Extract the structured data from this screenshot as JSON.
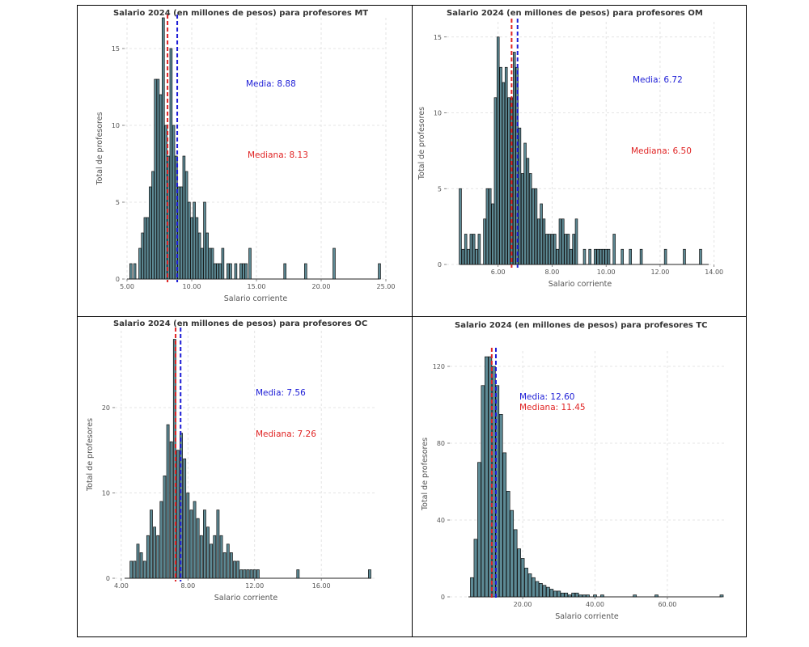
{
  "colors": {
    "bar_fill": "#5d8a95",
    "bar_stroke": "#111111",
    "mean": "#1c1cd6",
    "median": "#e02424",
    "grid": "#dcdcdc"
  },
  "chart_data": [
    {
      "type": "bar",
      "title": "Salario 2024 (en millones de pesos) para profesores MT",
      "xlabel": "Salario corriente",
      "ylabel": "Total de profesores",
      "xlim": [
        5.0,
        24.5
      ],
      "ylim": [
        0,
        17
      ],
      "xticks": [
        5.0,
        10.0,
        15.0,
        20.0,
        25.0
      ],
      "xtick_labels": [
        "5.00",
        "10.00",
        "15.00",
        "20.00",
        "25.00"
      ],
      "yticks": [
        0,
        5,
        10,
        15
      ],
      "bin_width": 0.18,
      "bins": [
        [
          5.3,
          1
        ],
        [
          5.6,
          1
        ],
        [
          6.0,
          2
        ],
        [
          6.2,
          3
        ],
        [
          6.4,
          4
        ],
        [
          6.6,
          4
        ],
        [
          6.8,
          6
        ],
        [
          7.0,
          7
        ],
        [
          7.2,
          13
        ],
        [
          7.4,
          13
        ],
        [
          7.6,
          12
        ],
        [
          7.8,
          17
        ],
        [
          8.0,
          10
        ],
        [
          8.2,
          8
        ],
        [
          8.4,
          15
        ],
        [
          8.6,
          10
        ],
        [
          8.8,
          8
        ],
        [
          9.0,
          6
        ],
        [
          9.2,
          6
        ],
        [
          9.4,
          8
        ],
        [
          9.6,
          7
        ],
        [
          9.8,
          5
        ],
        [
          10.0,
          4
        ],
        [
          10.2,
          5
        ],
        [
          10.4,
          4
        ],
        [
          10.6,
          3
        ],
        [
          10.8,
          2
        ],
        [
          11.0,
          5
        ],
        [
          11.2,
          3
        ],
        [
          11.4,
          2
        ],
        [
          11.6,
          2
        ],
        [
          11.8,
          1
        ],
        [
          12.0,
          1
        ],
        [
          12.2,
          1
        ],
        [
          12.4,
          2
        ],
        [
          12.8,
          1
        ],
        [
          13.0,
          1
        ],
        [
          13.4,
          1
        ],
        [
          13.8,
          1
        ],
        [
          14.0,
          1
        ],
        [
          14.2,
          1
        ],
        [
          14.5,
          2
        ],
        [
          17.2,
          1
        ],
        [
          18.8,
          1
        ],
        [
          21.0,
          2
        ],
        [
          24.5,
          1
        ]
      ],
      "mean": {
        "value": 8.88,
        "label": "Media: 8.88"
      },
      "median": {
        "value": 8.13,
        "label": "Mediana: 8.13"
      }
    },
    {
      "type": "bar",
      "title": "Salario 2024 (en millones de pesos) para profesores OM",
      "xlabel": "Salario corriente",
      "ylabel": "Total de profesores",
      "xlim": [
        4.6,
        13.8
      ],
      "ylim": [
        0,
        16
      ],
      "xticks": [
        6.0,
        8.0,
        10.0,
        12.0,
        14.0
      ],
      "xtick_labels": [
        "6.00",
        "8.00",
        "10.00",
        "12.00",
        "14.00"
      ],
      "yticks": [
        0,
        5,
        10,
        15
      ],
      "bin_width": 0.085,
      "bins": [
        [
          4.6,
          5
        ],
        [
          4.7,
          1
        ],
        [
          4.8,
          2
        ],
        [
          4.9,
          1
        ],
        [
          5.0,
          2
        ],
        [
          5.1,
          2
        ],
        [
          5.2,
          1
        ],
        [
          5.3,
          2
        ],
        [
          5.5,
          3
        ],
        [
          5.6,
          5
        ],
        [
          5.7,
          5
        ],
        [
          5.8,
          4
        ],
        [
          5.9,
          11
        ],
        [
          6.0,
          15
        ],
        [
          6.1,
          13
        ],
        [
          6.2,
          12
        ],
        [
          6.3,
          13
        ],
        [
          6.4,
          11
        ],
        [
          6.5,
          11
        ],
        [
          6.6,
          14
        ],
        [
          6.7,
          13
        ],
        [
          6.8,
          9
        ],
        [
          6.9,
          6
        ],
        [
          7.0,
          8
        ],
        [
          7.1,
          7
        ],
        [
          7.2,
          6
        ],
        [
          7.3,
          5
        ],
        [
          7.4,
          5
        ],
        [
          7.5,
          3
        ],
        [
          7.6,
          4
        ],
        [
          7.7,
          3
        ],
        [
          7.8,
          2
        ],
        [
          7.9,
          2
        ],
        [
          8.0,
          2
        ],
        [
          8.1,
          2
        ],
        [
          8.2,
          1
        ],
        [
          8.3,
          3
        ],
        [
          8.4,
          3
        ],
        [
          8.5,
          2
        ],
        [
          8.6,
          2
        ],
        [
          8.7,
          1
        ],
        [
          8.8,
          2
        ],
        [
          8.9,
          3
        ],
        [
          9.2,
          1
        ],
        [
          9.4,
          1
        ],
        [
          9.6,
          1
        ],
        [
          9.7,
          1
        ],
        [
          9.8,
          1
        ],
        [
          9.9,
          1
        ],
        [
          10.0,
          1
        ],
        [
          10.1,
          1
        ],
        [
          10.3,
          2
        ],
        [
          10.6,
          1
        ],
        [
          10.9,
          1
        ],
        [
          11.3,
          1
        ],
        [
          12.2,
          1
        ],
        [
          12.9,
          1
        ],
        [
          13.5,
          1
        ]
      ],
      "mean": {
        "value": 6.72,
        "label": "Media: 6.72"
      },
      "median": {
        "value": 6.5,
        "label": "Mediana: 6.50"
      }
    },
    {
      "type": "bar",
      "title": "Salario 2024 (en millones de pesos) para profesores OC",
      "xlabel": "Salario corriente",
      "ylabel": "Total de profesores",
      "xlim": [
        4.2,
        19.0
      ],
      "ylim": [
        0,
        29
      ],
      "xticks": [
        4.0,
        8.0,
        12.0,
        16.0
      ],
      "xtick_labels": [
        "4.00",
        "8.00",
        "12.00",
        "16.00"
      ],
      "yticks": [
        0,
        10,
        20
      ],
      "bin_width": 0.15,
      "bins": [
        [
          4.6,
          2
        ],
        [
          4.8,
          2
        ],
        [
          5.0,
          4
        ],
        [
          5.2,
          3
        ],
        [
          5.4,
          2
        ],
        [
          5.6,
          5
        ],
        [
          5.8,
          8
        ],
        [
          6.0,
          6
        ],
        [
          6.2,
          5
        ],
        [
          6.4,
          9
        ],
        [
          6.6,
          12
        ],
        [
          6.8,
          18
        ],
        [
          7.0,
          16
        ],
        [
          7.2,
          28
        ],
        [
          7.4,
          15
        ],
        [
          7.6,
          17
        ],
        [
          7.8,
          14
        ],
        [
          8.0,
          10
        ],
        [
          8.2,
          8
        ],
        [
          8.4,
          9
        ],
        [
          8.6,
          7
        ],
        [
          8.8,
          5
        ],
        [
          9.0,
          8
        ],
        [
          9.2,
          6
        ],
        [
          9.4,
          4
        ],
        [
          9.6,
          5
        ],
        [
          9.8,
          8
        ],
        [
          10.0,
          5
        ],
        [
          10.2,
          3
        ],
        [
          10.4,
          4
        ],
        [
          10.6,
          3
        ],
        [
          10.8,
          2
        ],
        [
          11.0,
          2
        ],
        [
          11.2,
          1
        ],
        [
          11.4,
          1
        ],
        [
          11.6,
          1
        ],
        [
          11.8,
          1
        ],
        [
          12.0,
          1
        ],
        [
          12.2,
          1
        ],
        [
          14.6,
          1
        ],
        [
          18.9,
          1
        ]
      ],
      "mean": {
        "value": 7.56,
        "label": "Media: 7.56"
      },
      "median": {
        "value": 7.26,
        "label": "Mediana: 7.26"
      }
    },
    {
      "type": "bar",
      "title": "Salario 2024 (en millones de pesos) para profesores TC",
      "xlabel": "Salario corriente",
      "ylabel": "Total de profesores",
      "xlim": [
        5,
        75
      ],
      "ylim": [
        0,
        128
      ],
      "xticks": [
        20,
        40,
        60
      ],
      "xtick_labels": [
        "20.00",
        "40.00",
        "60.00"
      ],
      "yticks": [
        0,
        40,
        80,
        120
      ],
      "bin_width": 0.9,
      "bins": [
        [
          6,
          10
        ],
        [
          7,
          30
        ],
        [
          8,
          70
        ],
        [
          9,
          110
        ],
        [
          10,
          125
        ],
        [
          11,
          125
        ],
        [
          12,
          120
        ],
        [
          13,
          110
        ],
        [
          14,
          95
        ],
        [
          15,
          75
        ],
        [
          16,
          55
        ],
        [
          17,
          45
        ],
        [
          18,
          35
        ],
        [
          19,
          25
        ],
        [
          20,
          20
        ],
        [
          21,
          15
        ],
        [
          22,
          12
        ],
        [
          23,
          10
        ],
        [
          24,
          8
        ],
        [
          25,
          7
        ],
        [
          26,
          6
        ],
        [
          27,
          5
        ],
        [
          28,
          4
        ],
        [
          29,
          3
        ],
        [
          30,
          3
        ],
        [
          31,
          2
        ],
        [
          32,
          2
        ],
        [
          33,
          1
        ],
        [
          34,
          2
        ],
        [
          35,
          2
        ],
        [
          36,
          1
        ],
        [
          37,
          1
        ],
        [
          38,
          1
        ],
        [
          40,
          1
        ],
        [
          42,
          1
        ],
        [
          51,
          1
        ],
        [
          57,
          1
        ],
        [
          75,
          1
        ]
      ],
      "mean": {
        "value": 12.6,
        "label": "Media: 12.60"
      },
      "median": {
        "value": 11.45,
        "label": "Mediana: 11.45"
      }
    }
  ]
}
